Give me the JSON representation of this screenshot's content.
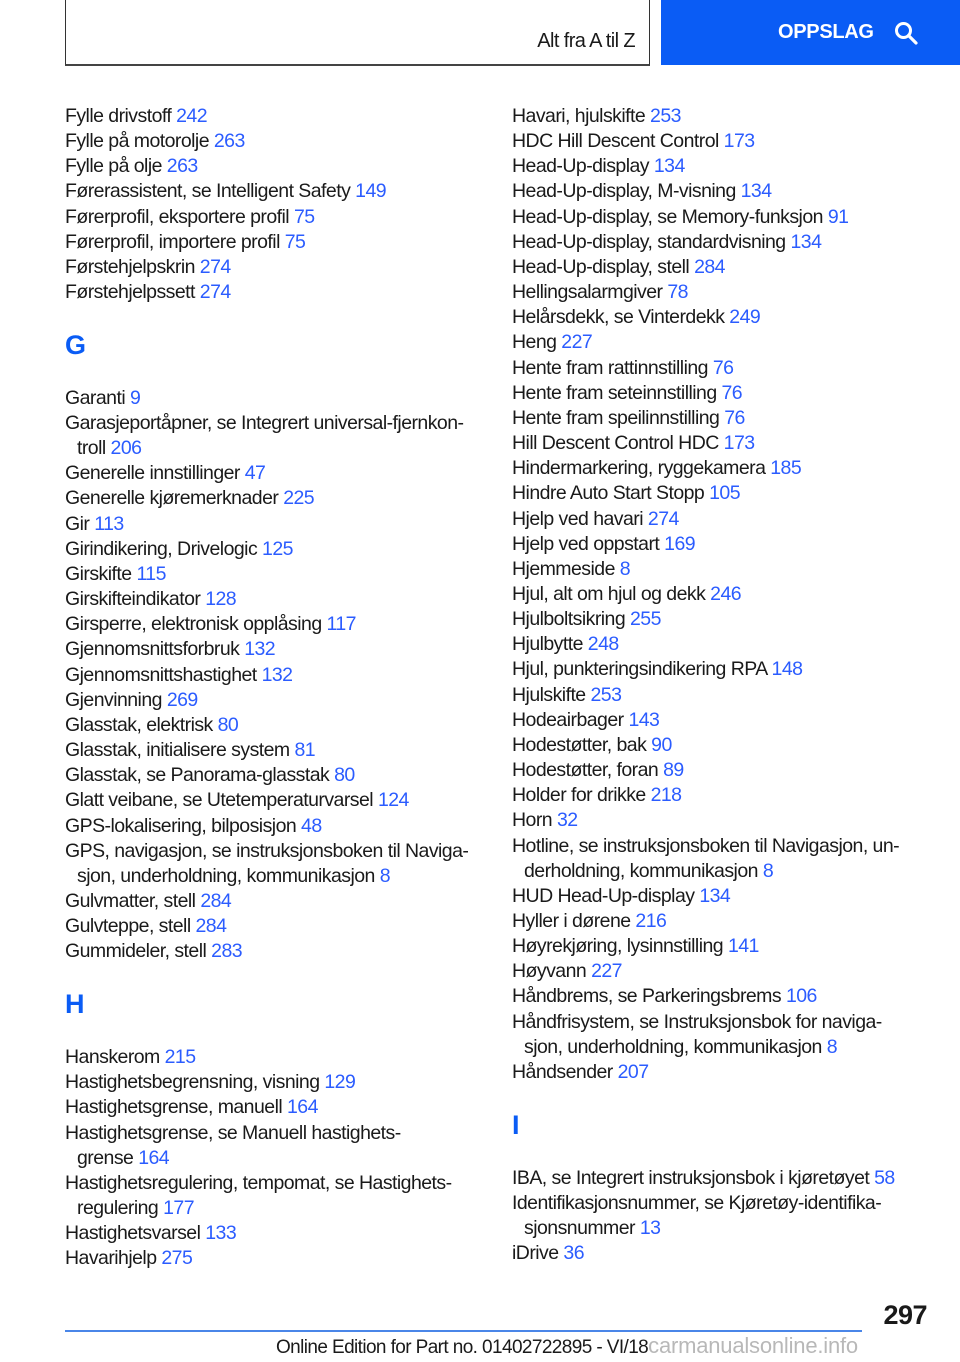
{
  "header": {
    "title": "Alt fra A til Z",
    "button_label": "OPPSLAG",
    "button_icon": "search-icon",
    "accent": "#0a5cf5"
  },
  "left": [
    {
      "type": "entry",
      "t": "Fylle drivstoff",
      "p": "242"
    },
    {
      "type": "entry",
      "t": "Fylle på motorolje",
      "p": "263"
    },
    {
      "type": "entry",
      "t": "Fylle på olje",
      "p": "263"
    },
    {
      "type": "entry",
      "t": "Førerassistent, se Intelligent Safety",
      "p": "149"
    },
    {
      "type": "entry",
      "t": "Førerprofil, eksportere profil",
      "p": "75"
    },
    {
      "type": "entry",
      "t": "Førerprofil, importere profil",
      "p": "75"
    },
    {
      "type": "entry",
      "t": "Førstehjelpskrin",
      "p": "274"
    },
    {
      "type": "entry",
      "t": "Førstehjelpssett",
      "p": "274"
    },
    {
      "type": "section",
      "t": "G"
    },
    {
      "type": "entry",
      "t": "Garanti",
      "p": "9"
    },
    {
      "type": "entry",
      "t": "Garasjeportåpner, se Integrert universal-fjernkon-",
      "c": "troll",
      "p": "206"
    },
    {
      "type": "entry",
      "t": "Generelle innstillinger",
      "p": "47"
    },
    {
      "type": "entry",
      "t": "Generelle kjøremerknader",
      "p": "225"
    },
    {
      "type": "entry",
      "t": "Gir",
      "p": "113"
    },
    {
      "type": "entry",
      "t": "Girindikering, Drivelogic",
      "p": "125"
    },
    {
      "type": "entry",
      "t": "Girskifte",
      "p": "115"
    },
    {
      "type": "entry",
      "t": "Girskifteindikator",
      "p": "128"
    },
    {
      "type": "entry",
      "t": "Girsperre, elektronisk opplåsing",
      "p": "117"
    },
    {
      "type": "entry",
      "t": "Gjennomsnittsforbruk",
      "p": "132"
    },
    {
      "type": "entry",
      "t": "Gjennomsnittshastighet",
      "p": "132"
    },
    {
      "type": "entry",
      "t": "Gjenvinning",
      "p": "269"
    },
    {
      "type": "entry",
      "t": "Glasstak, elektrisk",
      "p": "80"
    },
    {
      "type": "entry",
      "t": "Glasstak, initialisere system",
      "p": "81"
    },
    {
      "type": "entry",
      "t": "Glasstak, se Panorama-glasstak",
      "p": "80"
    },
    {
      "type": "entry",
      "t": "Glatt veibane, se Utetemperaturvarsel",
      "p": "124"
    },
    {
      "type": "entry",
      "t": "GPS-lokalisering, bilposisjon",
      "p": "48"
    },
    {
      "type": "entry",
      "t": "GPS, navigasjon, se instruksjonsboken til Naviga-",
      "c": "sjon, underholdning, kommunikasjon",
      "p": "8"
    },
    {
      "type": "entry",
      "t": "Gulvmatter, stell",
      "p": "284"
    },
    {
      "type": "entry",
      "t": "Gulvteppe, stell",
      "p": "284"
    },
    {
      "type": "entry",
      "t": "Gummideler, stell",
      "p": "283"
    },
    {
      "type": "section",
      "t": "H"
    },
    {
      "type": "entry",
      "t": "Hanskerom",
      "p": "215"
    },
    {
      "type": "entry",
      "t": "Hastighetsbegrensning, visning",
      "p": "129"
    },
    {
      "type": "entry",
      "t": "Hastighetsgrense, manuell",
      "p": "164"
    },
    {
      "type": "entry",
      "t": "Hastighetsgrense, se Manuell hastighets-",
      "c": "grense",
      "p": "164"
    },
    {
      "type": "entry",
      "t": "Hastighetsregulering, tempomat, se Hastighets-",
      "c": "regulering",
      "p": "177"
    },
    {
      "type": "entry",
      "t": "Hastighetsvarsel",
      "p": "133"
    },
    {
      "type": "entry",
      "t": "Havarihjelp",
      "p": "275"
    }
  ],
  "right": [
    {
      "type": "entry",
      "t": "Havari, hjulskifte",
      "p": "253"
    },
    {
      "type": "entry",
      "t": "HDC Hill Descent Control",
      "p": "173"
    },
    {
      "type": "entry",
      "t": "Head-Up-display",
      "p": "134"
    },
    {
      "type": "entry",
      "t": "Head-Up-display, M-visning",
      "p": "134"
    },
    {
      "type": "entry",
      "t": "Head-Up-display, se Memory-funksjon",
      "p": "91"
    },
    {
      "type": "entry",
      "t": "Head-Up-display, standardvisning",
      "p": "134"
    },
    {
      "type": "entry",
      "t": "Head-Up-display, stell",
      "p": "284"
    },
    {
      "type": "entry",
      "t": "Hellingsalarmgiver",
      "p": "78"
    },
    {
      "type": "entry",
      "t": "Helårsdekk, se Vinterdekk",
      "p": "249"
    },
    {
      "type": "entry",
      "t": "Heng",
      "p": "227"
    },
    {
      "type": "entry",
      "t": "Hente fram rattinnstilling",
      "p": "76"
    },
    {
      "type": "entry",
      "t": "Hente fram seteinnstilling",
      "p": "76"
    },
    {
      "type": "entry",
      "t": "Hente fram speilinnstilling",
      "p": "76"
    },
    {
      "type": "entry",
      "t": "Hill Descent Control HDC",
      "p": "173"
    },
    {
      "type": "entry",
      "t": "Hindermarkering, ryggekamera",
      "p": "185"
    },
    {
      "type": "entry",
      "t": "Hindre Auto Start Stopp",
      "p": "105"
    },
    {
      "type": "entry",
      "t": "Hjelp ved havari",
      "p": "274"
    },
    {
      "type": "entry",
      "t": "Hjelp ved oppstart",
      "p": "169"
    },
    {
      "type": "entry",
      "t": "Hjemmeside",
      "p": "8"
    },
    {
      "type": "entry",
      "t": "Hjul, alt om hjul og dekk",
      "p": "246"
    },
    {
      "type": "entry",
      "t": "Hjulboltsikring",
      "p": "255"
    },
    {
      "type": "entry",
      "t": "Hjulbytte",
      "p": "248"
    },
    {
      "type": "entry",
      "t": "Hjul, punkteringsindikering RPA",
      "p": "148"
    },
    {
      "type": "entry",
      "t": "Hjulskifte",
      "p": "253"
    },
    {
      "type": "entry",
      "t": "Hodeairbager",
      "p": "143"
    },
    {
      "type": "entry",
      "t": "Hodestøtter, bak",
      "p": "90"
    },
    {
      "type": "entry",
      "t": "Hodestøtter, foran",
      "p": "89"
    },
    {
      "type": "entry",
      "t": "Holder for drikke",
      "p": "218"
    },
    {
      "type": "entry",
      "t": "Horn",
      "p": "32"
    },
    {
      "type": "entry",
      "t": "Hotline, se instruksjonsboken til Navigasjon, un-",
      "c": "derholdning, kommunikasjon",
      "p": "8"
    },
    {
      "type": "entry",
      "t": "HUD Head-Up-display",
      "p": "134"
    },
    {
      "type": "entry",
      "t": "Hyller i dørene",
      "p": "216"
    },
    {
      "type": "entry",
      "t": "Høyrekjøring, lysinnstilling",
      "p": "141"
    },
    {
      "type": "entry",
      "t": "Høyvann",
      "p": "227"
    },
    {
      "type": "entry",
      "t": "Håndbrems, se Parkeringsbrems",
      "p": "106"
    },
    {
      "type": "entry",
      "t": "Håndfrisystem, se Instruksjonsbok for naviga-",
      "c": "sjon, underholdning, kommunikasjon",
      "p": "8"
    },
    {
      "type": "entry",
      "t": "Håndsender",
      "p": "207"
    },
    {
      "type": "section",
      "t": "I"
    },
    {
      "type": "entry",
      "t": "IBA, se Integrert instruksjonsbok i kjøretøyet",
      "p": "58"
    },
    {
      "type": "entry",
      "t": "Identifikasjonsnummer, se Kjøretøy-identifika-",
      "c": "sjonsnummer",
      "p": "13"
    },
    {
      "type": "entry",
      "t": "iDrive",
      "p": "36"
    }
  ],
  "footer": {
    "page_number": "297",
    "edition": "Online Edition for Part no. 01402722895 - VI/18",
    "watermark": "carmanualsonline.info"
  }
}
